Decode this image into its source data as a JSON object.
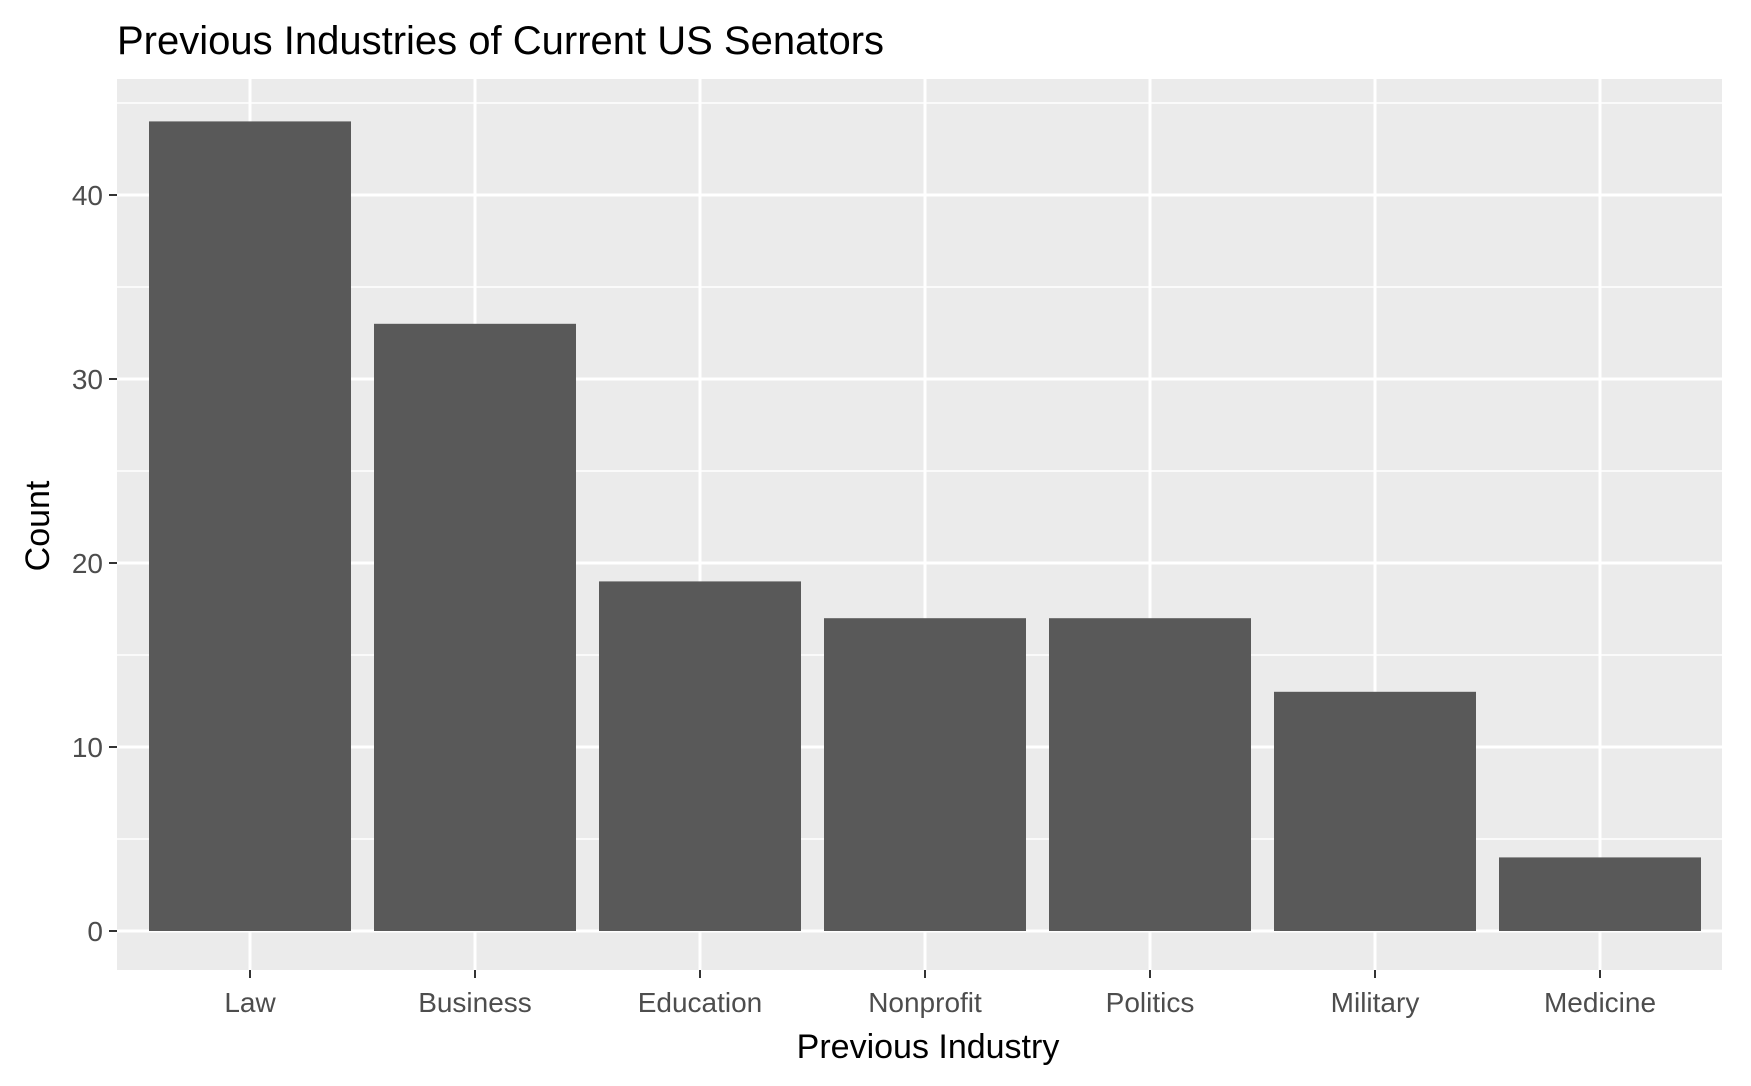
{
  "chart_data": {
    "type": "bar",
    "title": "Previous Industries of Current US Senators",
    "xlabel": "Previous Industry",
    "ylabel": "Count",
    "categories": [
      "Law",
      "Business",
      "Education",
      "Nonprofit",
      "Politics",
      "Military",
      "Medicine"
    ],
    "values": [
      44,
      33,
      19,
      17,
      17,
      13,
      4
    ],
    "ylim": [
      0,
      46.2
    ],
    "yticks": [
      0,
      10,
      20,
      30,
      40
    ],
    "grid": true,
    "legend": "none",
    "colors": {
      "bar": "#595959",
      "panel": "#ebebeb",
      "grid": "#ffffff",
      "tick": "#333333",
      "tick_label": "#4d4d4d"
    }
  }
}
